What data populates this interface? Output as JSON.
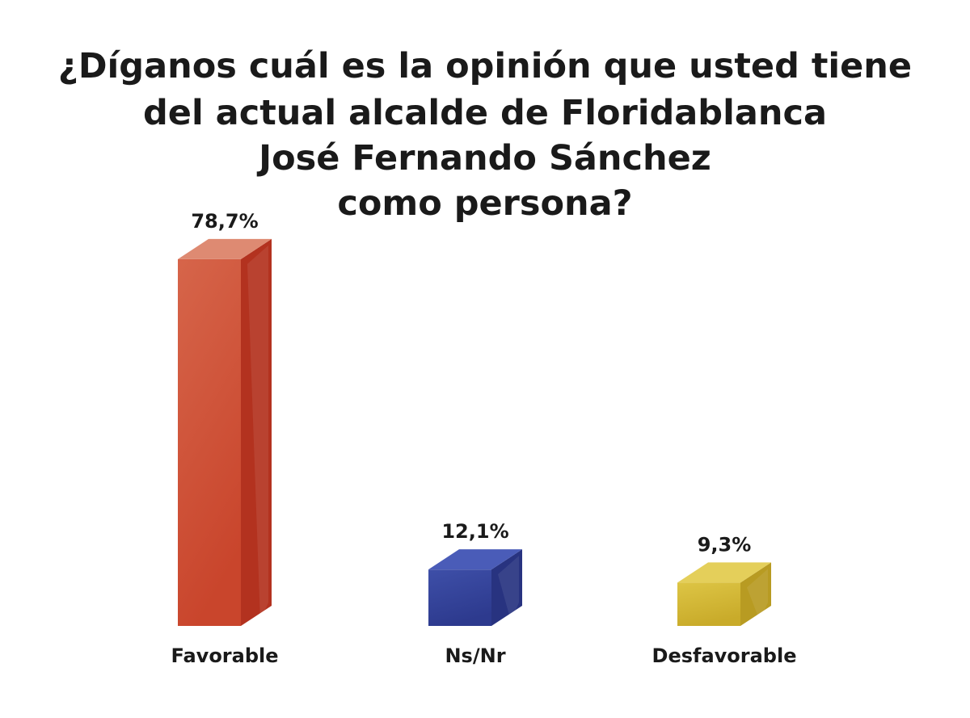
{
  "chart_data": {
    "type": "bar",
    "title_lines": [
      "¿Díganos cuál es la opinión que usted tiene",
      "del actual alcalde de Floridablanca",
      "José Fernando Sánchez",
      "como persona?"
    ],
    "categories": [
      "Favorable",
      "Ns/Nr",
      "Desfavorable"
    ],
    "values": [
      78.7,
      12.1,
      9.3
    ],
    "value_labels": [
      "78,7%",
      "12,1%",
      "9,3%"
    ],
    "colors": [
      {
        "front": "#c9452c",
        "front_light": "#d6654a",
        "side": "#b3321f",
        "top": "#de8a72"
      },
      {
        "front": "#2d3a8e",
        "front_light": "#3e4fa8",
        "side": "#283380",
        "top": "#4a5cb8"
      },
      {
        "front": "#c9ab2a",
        "front_light": "#ddc545",
        "side": "#b89b22",
        "top": "#e4cf5a"
      }
    ],
    "ylim": [
      0,
      100
    ],
    "grid": false,
    "legend": "none"
  }
}
